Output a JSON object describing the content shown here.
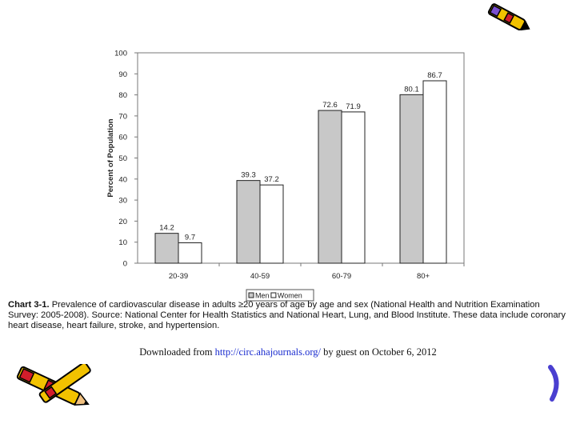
{
  "chart_data": {
    "type": "bar",
    "categories": [
      "20-39",
      "40-59",
      "60-79",
      "80+"
    ],
    "series": [
      {
        "name": "Men",
        "values": [
          14.2,
          39.3,
          72.6,
          80.1
        ],
        "color": "#c8c8c8",
        "labels": [
          "14.2",
          "39.3",
          "72.6",
          "80.1"
        ]
      },
      {
        "name": "Women",
        "values": [
          9.7,
          37.2,
          71.9,
          86.7
        ],
        "color": "#ffffff",
        "labels": [
          "9.7",
          "37.2",
          "71.9",
          "86.7"
        ]
      }
    ],
    "ylabel": "Percent of Population",
    "xlabel": "",
    "ylim": [
      0,
      100
    ],
    "yticks": [
      0,
      10,
      20,
      30,
      40,
      50,
      60,
      70,
      80,
      90,
      100
    ],
    "grid": false,
    "legend": "bottom-center"
  },
  "caption": {
    "label": "Chart 3-1.",
    "text": "Prevalence of cardiovascular disease in adults ≥20 years of age by age and sex (National Health and Nutrition Examination Survey: 2005-2008). Source: National Center for Health Statistics and National Heart, Lung, and Blood Institute. These data include coronary heart disease, heart failure, stroke, and hypertension."
  },
  "download": {
    "prefix": "Downloaded from ",
    "link": "http://circ.ahajournals.org/",
    "suffix": " by guest on October 6, 2012"
  },
  "decorations": {
    "top_right": "pencil-icon",
    "bottom_left": "pencils-icon",
    "bottom_right": "curl-icon"
  }
}
